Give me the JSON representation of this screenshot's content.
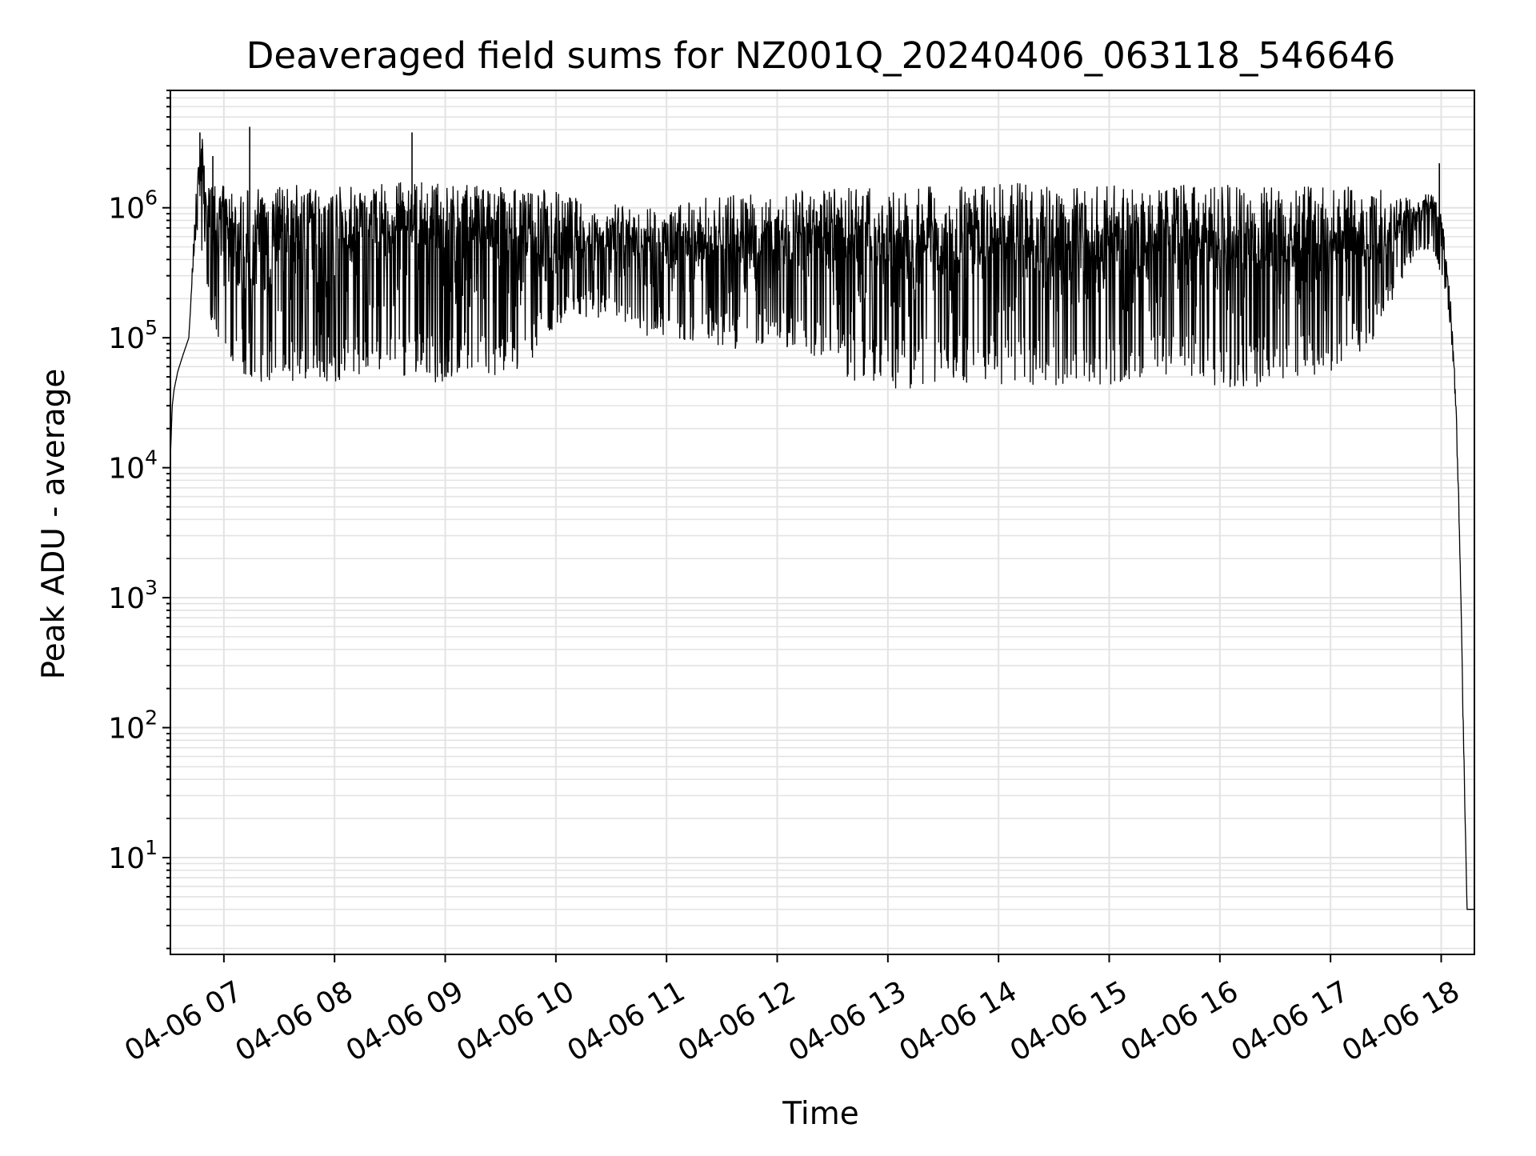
{
  "chart_data": {
    "type": "line",
    "title": "Deaveraged field sums for NZ001Q_20240406_063118_546646",
    "xlabel": "Time",
    "ylabel": "Peak ADU - average",
    "x_range": [
      "2024-04-06 06:31",
      "2024-04-06 18:18"
    ],
    "yscale": "log",
    "ylim": [
      1.8,
      8000000
    ],
    "grid": true,
    "line_color": "#000000",
    "grid_color": "#e3e3e3",
    "x_ticks": [
      {
        "value": "2024-04-06 07:00",
        "label": "04-06 07"
      },
      {
        "value": "2024-04-06 08:00",
        "label": "04-06 08"
      },
      {
        "value": "2024-04-06 09:00",
        "label": "04-06 09"
      },
      {
        "value": "2024-04-06 10:00",
        "label": "04-06 10"
      },
      {
        "value": "2024-04-06 11:00",
        "label": "04-06 11"
      },
      {
        "value": "2024-04-06 12:00",
        "label": "04-06 12"
      },
      {
        "value": "2024-04-06 13:00",
        "label": "04-06 13"
      },
      {
        "value": "2024-04-06 14:00",
        "label": "04-06 14"
      },
      {
        "value": "2024-04-06 15:00",
        "label": "04-06 15"
      },
      {
        "value": "2024-04-06 16:00",
        "label": "04-06 16"
      },
      {
        "value": "2024-04-06 17:00",
        "label": "04-06 17"
      },
      {
        "value": "2024-04-06 18:00",
        "label": "04-06 18"
      }
    ],
    "y_ticks": [
      {
        "value": 10,
        "base": "10",
        "exp": "1"
      },
      {
        "value": 100,
        "base": "10",
        "exp": "2"
      },
      {
        "value": 1000,
        "base": "10",
        "exp": "3"
      },
      {
        "value": 10000,
        "base": "10",
        "exp": "4"
      },
      {
        "value": 100000,
        "base": "10",
        "exp": "5"
      },
      {
        "value": 1000000,
        "base": "10",
        "exp": "6"
      }
    ],
    "series": [
      {
        "x": [
          "2024-04-06 06:31",
          "2024-04-06 06:32",
          "2024-04-06 06:33",
          "2024-04-06 06:35",
          "2024-04-06 06:38",
          "2024-04-06 06:41",
          "2024-04-06 06:43",
          "2024-04-06 06:45",
          "2024-04-06 06:48",
          "2024-04-06 06:50",
          "2024-04-06 06:52",
          "2024-04-06 07:00",
          "2024-04-06 07:05",
          "2024-04-06 07:12",
          "2024-04-06 07:20",
          "2024-04-06 07:40",
          "2024-04-06 08:00",
          "2024-04-06 08:20",
          "2024-04-06 08:40",
          "2024-04-06 09:00",
          "2024-04-06 09:20",
          "2024-04-06 09:40",
          "2024-04-06 10:00",
          "2024-04-06 10:20",
          "2024-04-06 10:40",
          "2024-04-06 11:00",
          "2024-04-06 11:20",
          "2024-04-06 11:40",
          "2024-04-06 12:00",
          "2024-04-06 12:20",
          "2024-04-06 12:40",
          "2024-04-06 13:00",
          "2024-04-06 13:20",
          "2024-04-06 13:40",
          "2024-04-06 14:00",
          "2024-04-06 14:20",
          "2024-04-06 14:40",
          "2024-04-06 15:00",
          "2024-04-06 15:20",
          "2024-04-06 15:40",
          "2024-04-06 16:00",
          "2024-04-06 16:20",
          "2024-04-06 16:40",
          "2024-04-06 17:00",
          "2024-04-06 17:20",
          "2024-04-06 17:40",
          "2024-04-06 17:55",
          "2024-04-06 18:00",
          "2024-04-06 18:03",
          "2024-04-06 18:06",
          "2024-04-06 18:08",
          "2024-04-06 18:10",
          "2024-04-06 18:12",
          "2024-04-06 18:14",
          "2024-04-06 18:18"
        ],
        "y": [
          12000,
          30000,
          40000,
          55000,
          75000,
          100000,
          300000,
          1200000,
          2500000,
          1000000,
          700000,
          500000,
          300000,
          150000,
          400000,
          500000,
          450000,
          500000,
          550000,
          480000,
          450000,
          420000,
          380000,
          400000,
          420000,
          400000,
          380000,
          420000,
          450000,
          420000,
          400000,
          350000,
          320000,
          330000,
          350000,
          330000,
          320000,
          330000,
          340000,
          330000,
          320000,
          330000,
          350000,
          380000,
          420000,
          500000,
          1000000,
          700000,
          300000,
          100000,
          30000,
          3000,
          100,
          4,
          4
        ],
        "band_low": [
          12000,
          30000,
          40000,
          55000,
          75000,
          100000,
          300000,
          600000,
          400000,
          200000,
          150000,
          80000,
          60000,
          50000,
          45000,
          45000,
          45000,
          50000,
          45000,
          45000,
          50000,
          50000,
          120000,
          150000,
          100000,
          100000,
          90000,
          80000,
          90000,
          70000,
          45000,
          40000,
          40000,
          45000,
          42000,
          40000,
          45000,
          42000,
          42000,
          45000,
          42000,
          40000,
          45000,
          45000,
          80000,
          300000,
          500000,
          300000,
          200000,
          80000,
          25000,
          2500,
          80,
          4,
          4
        ],
        "band_high": [
          12000,
          30000,
          40000,
          55000,
          75000,
          100000,
          400000,
          1400000,
          3800000,
          1600000,
          1500000,
          1500000,
          1500000,
          1450000,
          1450000,
          1500000,
          1500000,
          1550000,
          1600000,
          1550000,
          1500000,
          1450000,
          1400000,
          1100000,
          1050000,
          1000000,
          1200000,
          1300000,
          1300000,
          1350000,
          1450000,
          1450000,
          1450000,
          1500000,
          1550000,
          1550000,
          1500000,
          1500000,
          1500000,
          1550000,
          1550000,
          1500000,
          1550000,
          1500000,
          1450000,
          1300000,
          1300000,
          900000,
          600000,
          120000,
          35000,
          3500,
          120,
          4,
          4
        ],
        "spikes": [
          {
            "x": "2024-04-06 06:47",
            "y": 3800000
          },
          {
            "x": "2024-04-06 06:54",
            "y": 2500000
          },
          {
            "x": "2024-04-06 07:14",
            "y": 4200000
          },
          {
            "x": "2024-04-06 08:42",
            "y": 3800000
          },
          {
            "x": "2024-04-06 17:59",
            "y": 2200000
          }
        ]
      }
    ]
  }
}
